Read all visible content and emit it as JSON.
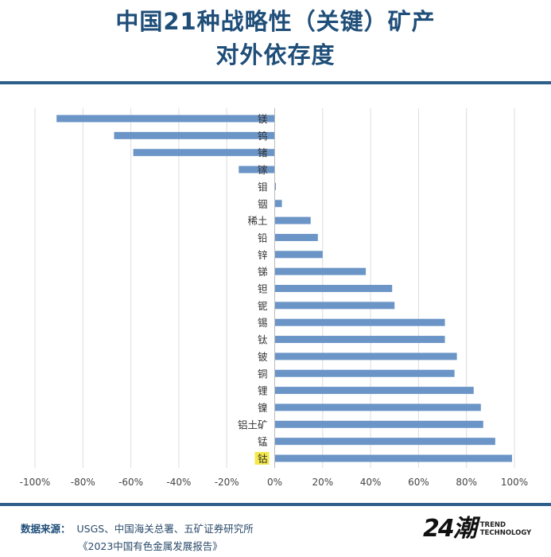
{
  "chart_data": {
    "type": "bar",
    "orientation": "horizontal",
    "title": "中国21种战略性（关键）矿产",
    "subtitle": "对外依存度",
    "categories": [
      "镁",
      "钨",
      "锗",
      "镓",
      "钼",
      "铟",
      "稀土",
      "铅",
      "锌",
      "锑",
      "钽",
      "铌",
      "锡",
      "钛",
      "铍",
      "铜",
      "锂",
      "镍",
      "铝土矿",
      "锰",
      "钴"
    ],
    "values": [
      -91,
      -67,
      -59,
      -15,
      0.5,
      3,
      15,
      18,
      20,
      38,
      49,
      50,
      71,
      71,
      76,
      75,
      83,
      86,
      87,
      92,
      99
    ],
    "highlight": "钴",
    "xlim": [
      -100,
      100
    ],
    "xticks": [
      -100,
      -80,
      -60,
      -40,
      -20,
      0,
      20,
      40,
      60,
      80,
      100
    ],
    "tick_labels": [
      "-100%",
      "-80%",
      "-60%",
      "-40%",
      "-20%",
      "0%",
      "20%",
      "40%",
      "60%",
      "80%",
      "100%"
    ],
    "xlabel": "",
    "ylabel": "",
    "grid": "vertical",
    "bar_color": "#6b95c7",
    "highlight_color": "#f4e84a"
  },
  "footer": {
    "source_label": "数据来源：",
    "source_line1": "USGS、中国海关总署、五矿证券研究所",
    "source_line2": "《2023中国有色金属发展报告》"
  },
  "logo": {
    "mark": "24潮",
    "text_line1": "TREND",
    "text_line2": "TECHNOLOGY"
  }
}
